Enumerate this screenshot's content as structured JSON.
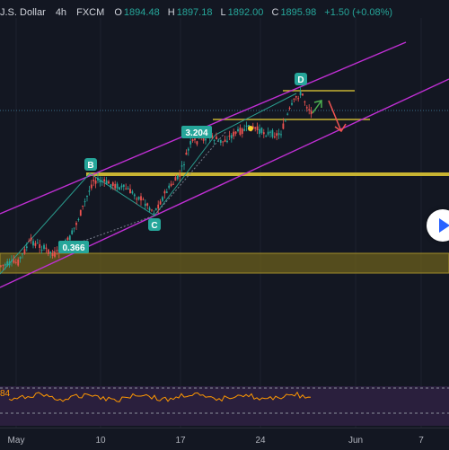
{
  "header": {
    "symbol": "J.S. Dollar",
    "timeframe": "4h",
    "source": "FXCM",
    "o_label": "O",
    "o_value": "1894.48",
    "h_label": "H",
    "h_value": "1897.18",
    "l_label": "L",
    "l_value": "1892.00",
    "c_label": "C",
    "c_value": "1895.98",
    "change": "+1.50 (+0.08%)"
  },
  "chart_data": {
    "type": "candlestick",
    "x_ticks": [
      "May",
      "10",
      "17",
      "24",
      "Jun",
      "7"
    ],
    "point_labels": [
      "B",
      "C",
      "D"
    ],
    "ratio_labels": [
      "3.204",
      "0.366"
    ],
    "rsi_value": "84"
  },
  "colors": {
    "background": "#131722",
    "up": "#26a69a",
    "down": "#ef5350",
    "channel": "#c02fd4",
    "level": "#c8b432",
    "zone": "#6b5f1c",
    "rsi": "#ff9800",
    "rsi_bg": "#2a1f3d"
  },
  "controls": {
    "play_icon": "play-icon"
  }
}
